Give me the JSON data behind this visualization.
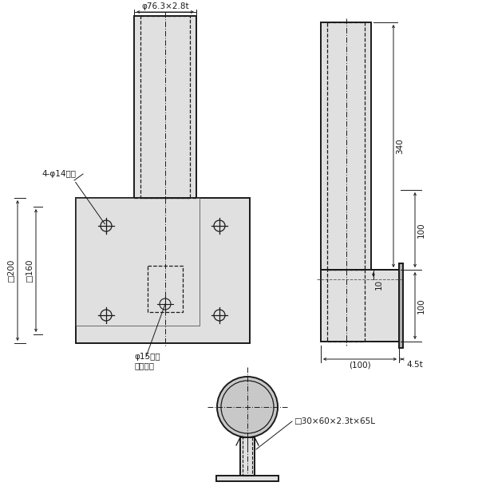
{
  "bg_color": "#ffffff",
  "line_color": "#1a1a1a",
  "fill_color": "#e0e0e0",
  "annotations": {
    "phi_tube": "φ76.3×2.8t",
    "holes": "4-φ14キリ",
    "square200": "□200",
    "square160": "□160",
    "phi15_line1": "φ15キリ",
    "phi15_line2": "水抜き穴",
    "dim_340": "340",
    "dim_100a": "100",
    "dim_100b": "100",
    "dim_10": "10",
    "dim_100p": "(100)",
    "dim_45t": "4.5t",
    "bottom_label": "□30×60×2.3t×65L"
  }
}
